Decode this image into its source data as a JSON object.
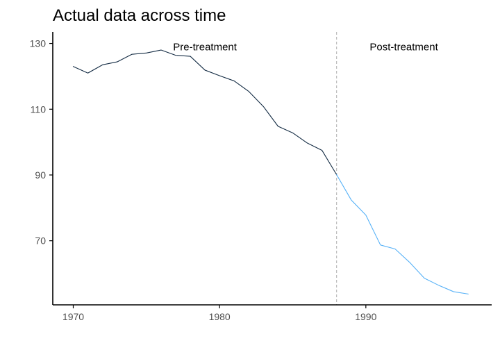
{
  "chart_data": {
    "type": "line",
    "title": "Actual data across time",
    "xlabel": "",
    "ylabel": "",
    "xlim": [
      1968.6,
      1998.6
    ],
    "ylim": [
      50.5,
      133.5
    ],
    "x_ticks": [
      1970,
      1980,
      1990
    ],
    "y_ticks": [
      70,
      90,
      110,
      130
    ],
    "grid": false,
    "treatment_year": 1988,
    "annotations": [
      {
        "text": "Pre-treatment",
        "x": 1979,
        "y": 129
      },
      {
        "text": "Post-treatment",
        "x": 1992.6,
        "y": 129
      }
    ],
    "colors": {
      "pre": "#132b43",
      "post": "#56b1f7",
      "vline": "#b3b3b3"
    },
    "series": [
      {
        "x": [
          1970,
          1971,
          1972,
          1973,
          1974,
          1975,
          1976,
          1977,
          1978,
          1979,
          1980,
          1981,
          1982,
          1983,
          1984,
          1985,
          1986,
          1987,
          1988
        ],
        "values": [
          123.0,
          121.0,
          123.5,
          124.4,
          126.7,
          127.1,
          128.0,
          126.4,
          126.1,
          121.9,
          120.2,
          118.6,
          115.4,
          110.8,
          104.8,
          102.8,
          99.7,
          97.5,
          90.1
        ]
      },
      {
        "x": [
          1988,
          1989,
          1990,
          1991,
          1992,
          1993,
          1994,
          1995,
          1996,
          1997
        ],
        "values": [
          90.1,
          82.4,
          77.8,
          68.7,
          67.5,
          63.4,
          58.6,
          56.4,
          54.5,
          53.8
        ]
      }
    ]
  }
}
